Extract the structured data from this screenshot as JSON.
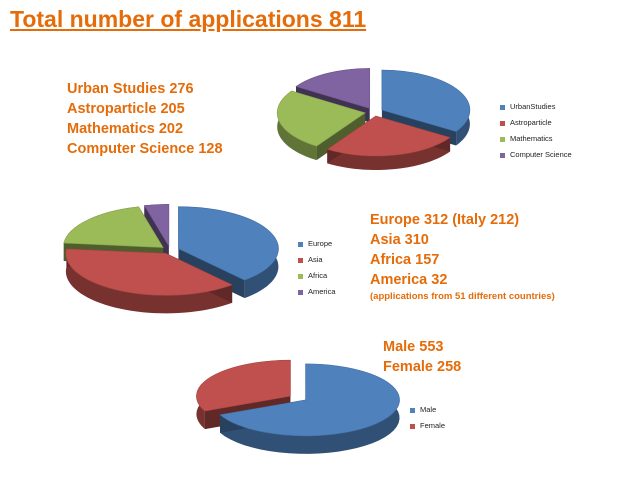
{
  "title": "Total number of applications 811",
  "colors": {
    "accent": "#e46c0a",
    "blue": "#4f81bd",
    "red": "#c0504d",
    "green": "#9bbb59",
    "purple": "#8064a2"
  },
  "stats": {
    "field": [
      "Urban Studies  276",
      "Astroparticle  205",
      "Mathematics  202",
      "Computer Science  128"
    ],
    "region": [
      "Europe 312 (Italy 212)",
      "Asia 310",
      "Africa 157",
      "America 32"
    ],
    "region_note": "(applications from 51  different countries)",
    "gender": [
      "Male  553",
      "Female  258"
    ]
  },
  "chart_data": [
    {
      "type": "pie",
      "categories": [
        "UrbanStudies",
        "Astroparticle",
        "Mathematics",
        "Computer Science"
      ],
      "values": [
        276,
        205,
        202,
        128
      ],
      "colors": [
        "#4f81bd",
        "#c0504d",
        "#9bbb59",
        "#8064a2"
      ],
      "legend": "right",
      "exploded": true,
      "style": "3d"
    },
    {
      "type": "pie",
      "categories": [
        "Europe",
        "Asia",
        "Africa",
        "America"
      ],
      "values": [
        312,
        310,
        157,
        32
      ],
      "colors": [
        "#4f81bd",
        "#c0504d",
        "#9bbb59",
        "#8064a2"
      ],
      "legend": "right",
      "exploded": true,
      "style": "3d"
    },
    {
      "type": "pie",
      "categories": [
        "Male",
        "Female"
      ],
      "values": [
        553,
        258
      ],
      "colors": [
        "#4f81bd",
        "#c0504d"
      ],
      "legend": "right",
      "exploded": true,
      "style": "3d"
    }
  ]
}
